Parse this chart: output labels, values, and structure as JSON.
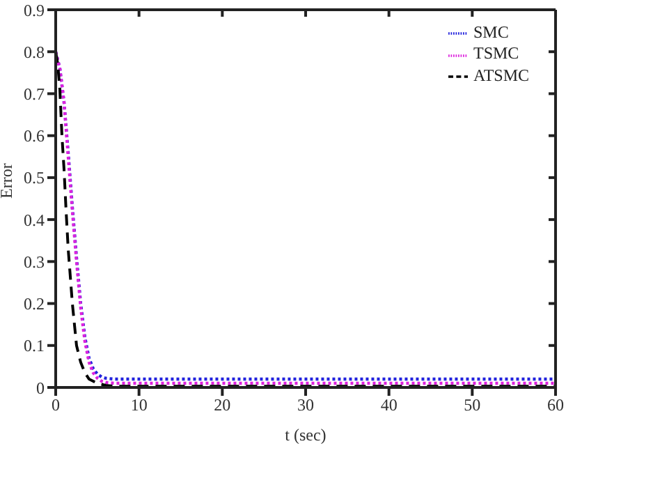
{
  "chart_data": {
    "type": "line",
    "xlabel": "t (sec)",
    "ylabel": "Error",
    "xlim": [
      0,
      60
    ],
    "xticks": [
      0,
      10,
      20,
      30,
      40,
      50,
      60
    ],
    "ylim": [
      0,
      0.9
    ],
    "yticks": [
      0,
      0.1,
      0.2,
      0.3,
      0.4,
      0.5,
      0.6,
      0.7,
      0.8,
      0.9
    ],
    "grid": false,
    "legend": "top right",
    "marker": "none",
    "series": [
      {
        "name": "SMC",
        "color": "#2222dd",
        "line_style": "dotted",
        "x": [
          0,
          0.5,
          1,
          1.5,
          2,
          2.5,
          3,
          3.5,
          4,
          4.5,
          5,
          5.5,
          6,
          7,
          10,
          20,
          30,
          40,
          50,
          60
        ],
        "values": [
          0.8,
          0.76,
          0.68,
          0.56,
          0.43,
          0.31,
          0.2,
          0.12,
          0.07,
          0.045,
          0.032,
          0.025,
          0.022,
          0.02,
          0.02,
          0.02,
          0.02,
          0.02,
          0.02,
          0.02
        ]
      },
      {
        "name": "TSMC",
        "color": "#dd22dd",
        "line_style": "dotted",
        "x": [
          0,
          0.5,
          1,
          1.5,
          2,
          2.5,
          3,
          3.5,
          4,
          4.5,
          5,
          5.5,
          6,
          7,
          10,
          20,
          30,
          40,
          50,
          60
        ],
        "values": [
          0.8,
          0.76,
          0.68,
          0.55,
          0.42,
          0.3,
          0.19,
          0.11,
          0.06,
          0.035,
          0.022,
          0.015,
          0.012,
          0.01,
          0.01,
          0.01,
          0.01,
          0.01,
          0.01,
          0.01
        ]
      },
      {
        "name": "ATSMC",
        "color": "#000000",
        "line_style": "dashed",
        "x": [
          0,
          0.25,
          0.5,
          0.75,
          1,
          1.25,
          1.5,
          2,
          2.5,
          3,
          3.5,
          4,
          5,
          6,
          7,
          10,
          20,
          30,
          40,
          50,
          60
        ],
        "values": [
          0.8,
          0.77,
          0.71,
          0.6,
          0.52,
          0.42,
          0.33,
          0.2,
          0.1,
          0.06,
          0.035,
          0.02,
          0.01,
          0.005,
          0.003,
          0.003,
          0.003,
          0.003,
          0.003,
          0.003,
          0.003
        ]
      }
    ]
  }
}
